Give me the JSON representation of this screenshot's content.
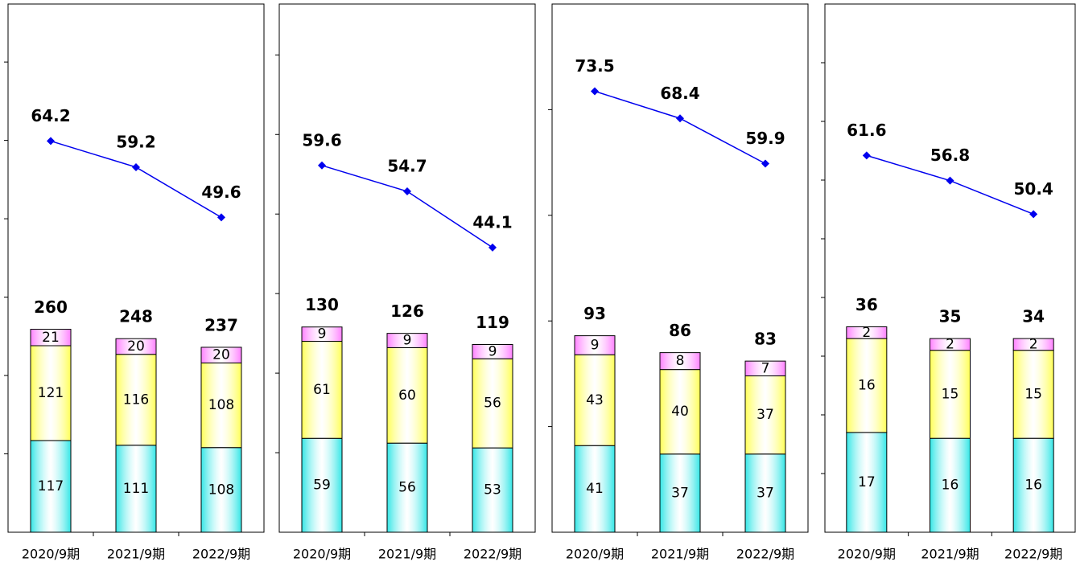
{
  "chart_data": [
    {
      "type": "bar",
      "categories": [
        "2020/9期",
        "2021/9期",
        "2022/9期"
      ],
      "ylim": [
        0,
        674
      ],
      "yticks": [
        100,
        200,
        300,
        400,
        500,
        600
      ],
      "y2lim": [
        -10.6,
        90.4
      ],
      "series": [
        {
          "color": "#33e6e6",
          "values": [
            117,
            111,
            108
          ]
        },
        {
          "color": "#ffff55",
          "values": [
            121,
            116,
            108
          ]
        },
        {
          "color": "#ff80ff",
          "values": [
            21,
            20,
            20
          ]
        },
        {
          "color": "#0000ee",
          "axis": "y2",
          "values": [
            64.2,
            59.2,
            49.6
          ]
        }
      ],
      "totals": [
        260,
        248,
        237
      ]
    },
    {
      "type": "bar",
      "categories": [
        "2020/9期",
        "2021/9期",
        "2022/9期"
      ],
      "ylim": [
        0,
        332
      ],
      "yticks": [
        50,
        100,
        150,
        200,
        250,
        300
      ],
      "y2lim": [
        -9.7,
        90.1
      ],
      "series": [
        {
          "color": "#33e6e6",
          "values": [
            59,
            56,
            53
          ]
        },
        {
          "color": "#ffff55",
          "values": [
            61,
            60,
            56
          ]
        },
        {
          "color": "#ff80ff",
          "values": [
            9,
            9,
            9
          ]
        },
        {
          "color": "#0000ee",
          "axis": "y2",
          "values": [
            59.6,
            54.7,
            44.1
          ]
        }
      ],
      "totals": [
        130,
        126,
        119
      ]
    },
    {
      "type": "bar",
      "categories": [
        "2020/9期",
        "2021/9期",
        "2022/9期"
      ],
      "ylim": [
        0,
        250
      ],
      "yticks": [
        50,
        100,
        150,
        200
      ],
      "y2lim": [
        -9.4,
        89.9
      ],
      "series": [
        {
          "color": "#33e6e6",
          "values": [
            41,
            37,
            37
          ]
        },
        {
          "color": "#ffff55",
          "values": [
            43,
            40,
            37
          ]
        },
        {
          "color": "#ff80ff",
          "values": [
            9,
            8,
            7
          ]
        },
        {
          "color": "#0000ee",
          "axis": "y2",
          "values": [
            73.5,
            68.4,
            59.9
          ]
        }
      ],
      "totals": [
        93,
        86,
        83
      ]
    },
    {
      "type": "bar",
      "categories": [
        "2020/9期",
        "2021/9期",
        "2022/9期"
      ],
      "ylim": [
        0,
        90
      ],
      "yticks": [
        10,
        20,
        30,
        40,
        50,
        60,
        70,
        80
      ],
      "y2lim": [
        -10.3,
        90.5
      ],
      "series": [
        {
          "color": "#33e6e6",
          "values": [
            17,
            16,
            16
          ]
        },
        {
          "color": "#ffff55",
          "values": [
            16,
            15,
            15
          ]
        },
        {
          "color": "#ff80ff",
          "values": [
            2,
            2,
            2
          ]
        },
        {
          "color": "#0000ee",
          "axis": "y2",
          "values": [
            61.6,
            56.8,
            50.4
          ]
        }
      ],
      "totals": [
        36,
        35,
        34
      ]
    }
  ]
}
